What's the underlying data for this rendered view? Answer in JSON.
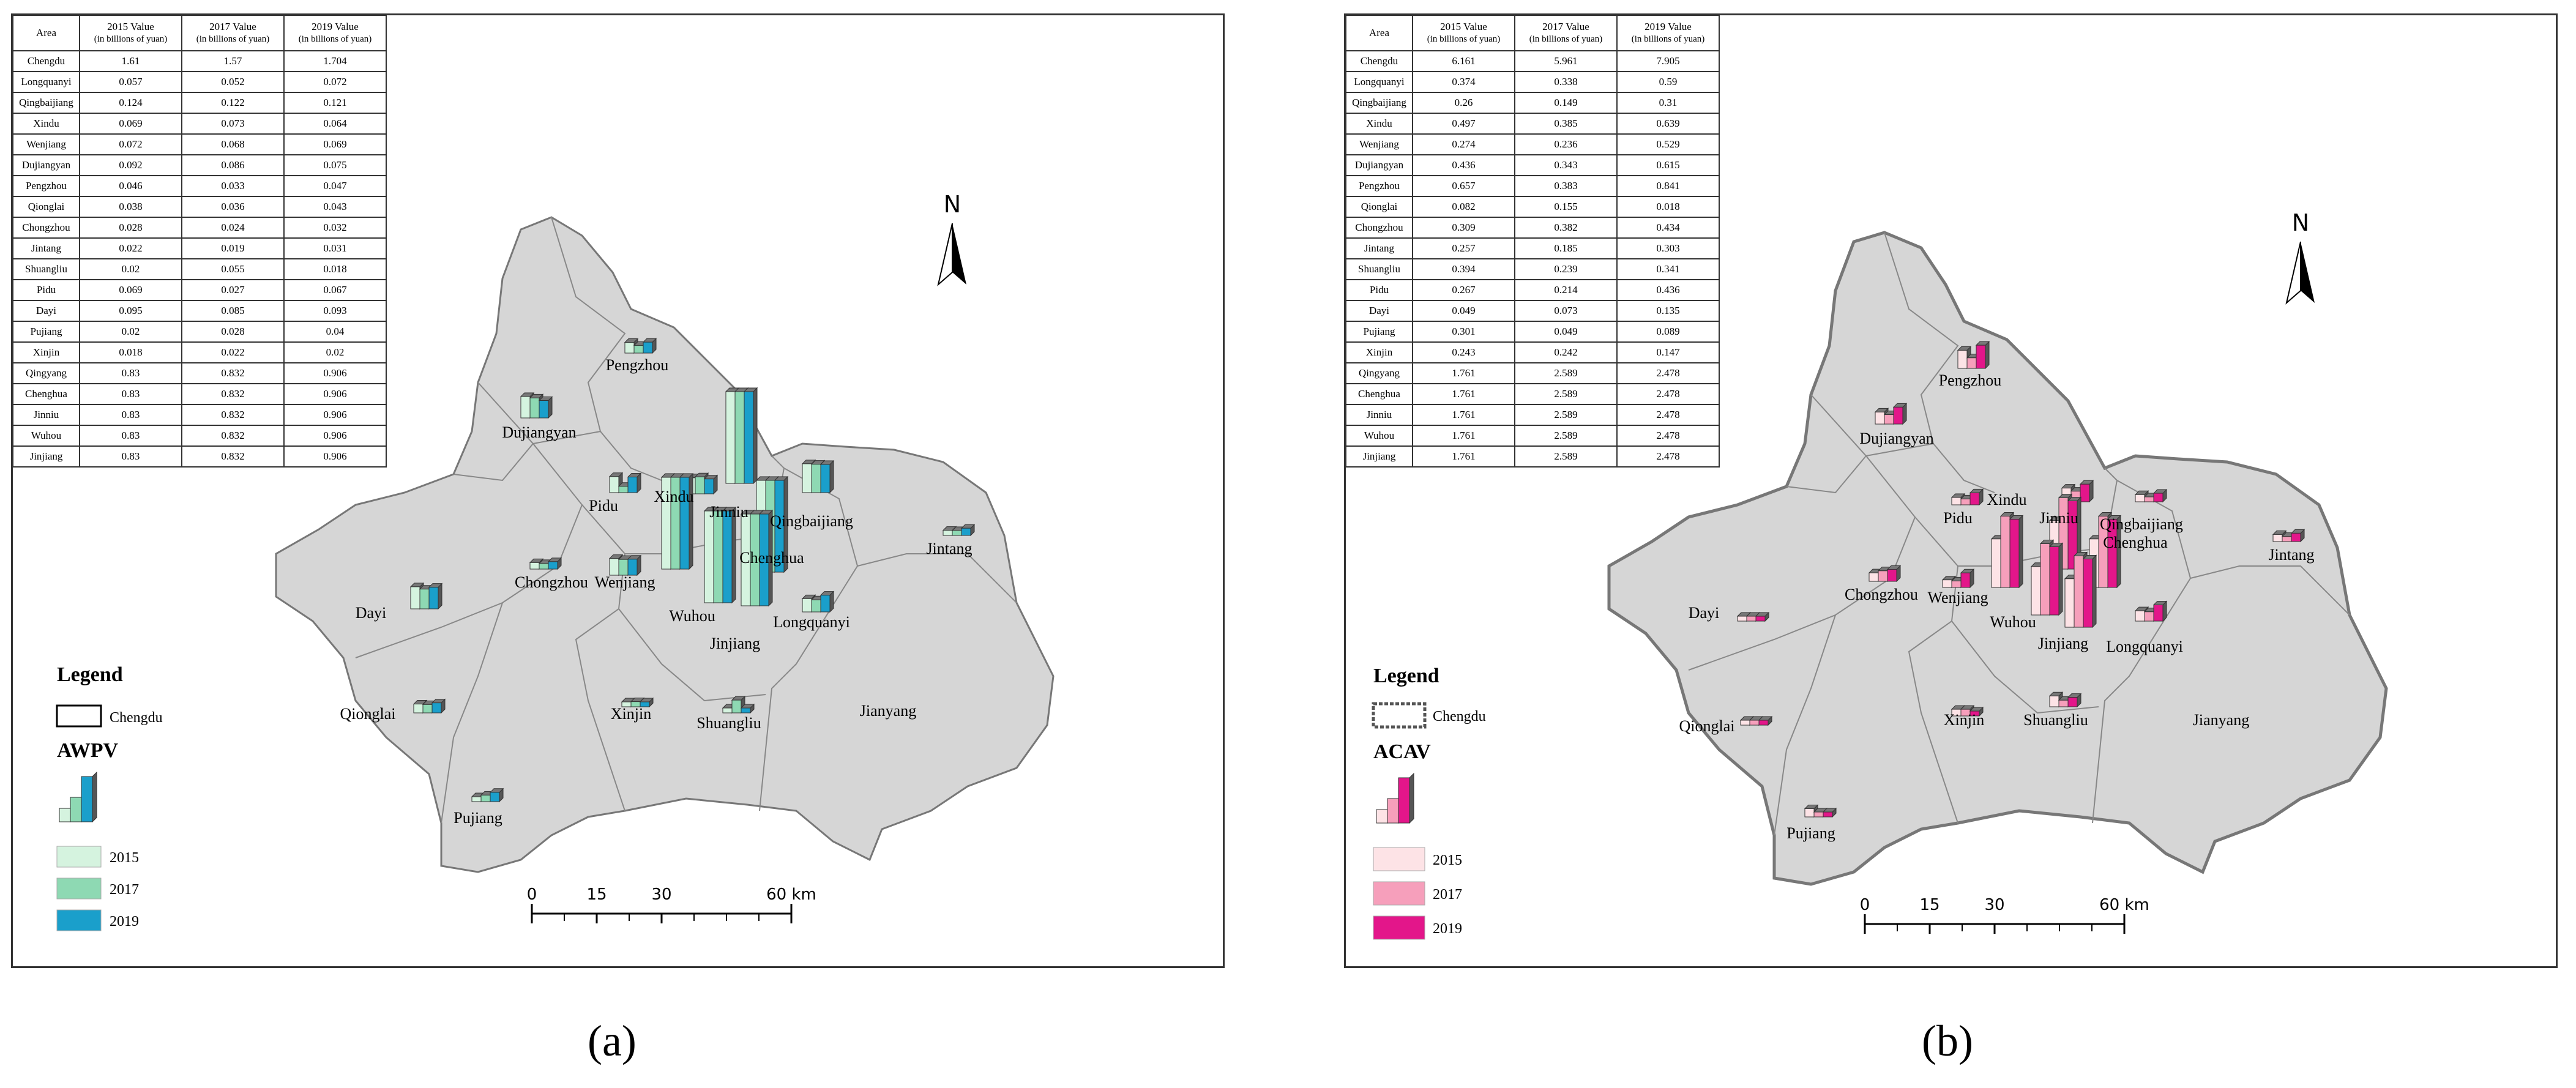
{
  "panels": [
    {
      "id": "a",
      "caption": "(a)",
      "table_headers": {
        "area": "Area",
        "v2015": "2015 Value",
        "v2017": "2017 Value",
        "v2019": "2019 Value",
        "unit": "(in billions of yuan)"
      },
      "rows": [
        {
          "area": "Chengdu",
          "v2015": "1.61",
          "v2017": "1.57",
          "v2019": "1.704"
        },
        {
          "area": "Longquanyi",
          "v2015": "0.057",
          "v2017": "0.052",
          "v2019": "0.072"
        },
        {
          "area": "Qingbaijiang",
          "v2015": "0.124",
          "v2017": "0.122",
          "v2019": "0.121"
        },
        {
          "area": "Xindu",
          "v2015": "0.069",
          "v2017": "0.073",
          "v2019": "0.064"
        },
        {
          "area": "Wenjiang",
          "v2015": "0.072",
          "v2017": "0.068",
          "v2019": "0.069"
        },
        {
          "area": "Dujiangyan",
          "v2015": "0.092",
          "v2017": "0.086",
          "v2019": "0.075"
        },
        {
          "area": "Pengzhou",
          "v2015": "0.046",
          "v2017": "0.033",
          "v2019": "0.047"
        },
        {
          "area": "Qionglai",
          "v2015": "0.038",
          "v2017": "0.036",
          "v2019": "0.043"
        },
        {
          "area": "Chongzhou",
          "v2015": "0.028",
          "v2017": "0.024",
          "v2019": "0.032"
        },
        {
          "area": "Jintang",
          "v2015": "0.022",
          "v2017": "0.019",
          "v2019": "0.031"
        },
        {
          "area": "Shuangliu",
          "v2015": "0.02",
          "v2017": "0.055",
          "v2019": "0.018"
        },
        {
          "area": "Pidu",
          "v2015": "0.069",
          "v2017": "0.027",
          "v2019": "0.067"
        },
        {
          "area": "Dayi",
          "v2015": "0.095",
          "v2017": "0.085",
          "v2019": "0.093"
        },
        {
          "area": "Pujiang",
          "v2015": "0.02",
          "v2017": "0.028",
          "v2019": "0.04"
        },
        {
          "area": "Xinjin",
          "v2015": "0.018",
          "v2017": "0.022",
          "v2019": "0.02"
        },
        {
          "area": "Qingyang",
          "v2015": "0.83",
          "v2017": "0.832",
          "v2019": "0.906"
        },
        {
          "area": "Chenghua",
          "v2015": "0.83",
          "v2017": "0.832",
          "v2019": "0.906"
        },
        {
          "area": "Jinniu",
          "v2015": "0.83",
          "v2017": "0.832",
          "v2019": "0.906"
        },
        {
          "area": "Wuhou",
          "v2015": "0.83",
          "v2017": "0.832",
          "v2019": "0.906"
        },
        {
          "area": "Jinjiang",
          "v2015": "0.83",
          "v2017": "0.832",
          "v2019": "0.906"
        }
      ],
      "legend_title": "Legend",
      "legend_boundary": "Chengdu",
      "indicator": "AWPV",
      "years": [
        "2015",
        "2017",
        "2019"
      ],
      "colors": {
        "c2015": "#d5f3df",
        "c2017": "#8ed9b3",
        "c2019": "#1a9fcb"
      },
      "north": "N",
      "scale": [
        "0",
        "15",
        "30",
        "60 km"
      ],
      "district_labels": [
        "Pengzhou",
        "Dujiangyan",
        "Pidu",
        "Xindu",
        "Jinniu",
        "Qingbaijiang",
        "Jintang",
        "Chongzhou",
        "Wenjiang",
        "Chenghua",
        "Dayi",
        "Wuhou",
        "Longquanyi",
        "Jinjiang",
        "Qionglai",
        "Xinjin",
        "Shuangliu",
        "Jianyang",
        "Pujiang"
      ]
    },
    {
      "id": "b",
      "caption": "(b)",
      "table_headers": {
        "area": "Area",
        "v2015": "2015 Value",
        "v2017": "2017 Value",
        "v2019": "2019 Value",
        "unit": "(in billions of yuan)"
      },
      "rows": [
        {
          "area": "Chengdu",
          "v2015": "6.161",
          "v2017": "5.961",
          "v2019": "7.905"
        },
        {
          "area": "Longquanyi",
          "v2015": "0.374",
          "v2017": "0.338",
          "v2019": "0.59"
        },
        {
          "area": "Qingbaijiang",
          "v2015": "0.26",
          "v2017": "0.149",
          "v2019": "0.31"
        },
        {
          "area": "Xindu",
          "v2015": "0.497",
          "v2017": "0.385",
          "v2019": "0.639"
        },
        {
          "area": "Wenjiang",
          "v2015": "0.274",
          "v2017": "0.236",
          "v2019": "0.529"
        },
        {
          "area": "Dujiangyan",
          "v2015": "0.436",
          "v2017": "0.343",
          "v2019": "0.615"
        },
        {
          "area": "Pengzhou",
          "v2015": "0.657",
          "v2017": "0.383",
          "v2019": "0.841"
        },
        {
          "area": "Qionglai",
          "v2015": "0.082",
          "v2017": "0.155",
          "v2019": "0.018"
        },
        {
          "area": "Chongzhou",
          "v2015": "0.309",
          "v2017": "0.382",
          "v2019": "0.434"
        },
        {
          "area": "Jintang",
          "v2015": "0.257",
          "v2017": "0.185",
          "v2019": "0.303"
        },
        {
          "area": "Shuangliu",
          "v2015": "0.394",
          "v2017": "0.239",
          "v2019": "0.341"
        },
        {
          "area": "Pidu",
          "v2015": "0.267",
          "v2017": "0.214",
          "v2019": "0.436"
        },
        {
          "area": "Dayi",
          "v2015": "0.049",
          "v2017": "0.073",
          "v2019": "0.135"
        },
        {
          "area": "Pujiang",
          "v2015": "0.301",
          "v2017": "0.049",
          "v2019": "0.089"
        },
        {
          "area": "Xinjin",
          "v2015": "0.243",
          "v2017": "0.242",
          "v2019": "0.147"
        },
        {
          "area": "Qingyang",
          "v2015": "1.761",
          "v2017": "2.589",
          "v2019": "2.478"
        },
        {
          "area": "Chenghua",
          "v2015": "1.761",
          "v2017": "2.589",
          "v2019": "2.478"
        },
        {
          "area": "Jinniu",
          "v2015": "1.761",
          "v2017": "2.589",
          "v2019": "2.478"
        },
        {
          "area": "Wuhou",
          "v2015": "1.761",
          "v2017": "2.589",
          "v2019": "2.478"
        },
        {
          "area": "Jinjiang",
          "v2015": "1.761",
          "v2017": "2.589",
          "v2019": "2.478"
        }
      ],
      "legend_title": "Legend",
      "legend_boundary": "Chengdu",
      "indicator": "ACAV",
      "years": [
        "2015",
        "2017",
        "2019"
      ],
      "colors": {
        "c2015": "#fde3e6",
        "c2017": "#f69fbb",
        "c2019": "#e3168a"
      },
      "north": "N",
      "scale": [
        "0",
        "15",
        "30",
        "60 km"
      ],
      "district_labels": [
        "Pengzhou",
        "Dujiangyan",
        "Pidu",
        "Xindu",
        "Jinniu",
        "Qingbaijiang",
        "Chenghua",
        "Jintang",
        "Chongzhou",
        "Wenjiang",
        "Dayi",
        "Wuhou",
        "Jinjiang",
        "Longquanyi",
        "Qionglai",
        "Xinjin",
        "Shuangliu",
        "Jianyang",
        "Pujiang"
      ]
    }
  ]
}
